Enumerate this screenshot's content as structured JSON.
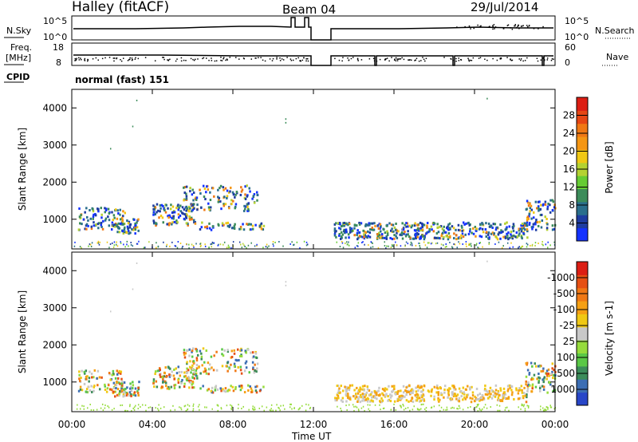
{
  "header": {
    "station": "Halley (fitACF)",
    "beam": "Beam 04",
    "date": "29/Jul/2014"
  },
  "panels": {
    "nsky": {
      "left_label": "N.Sky",
      "right_label": "N.Search",
      "left_ticks": [
        "10^5",
        "10^0"
      ],
      "right_ticks": [
        "10^5",
        "10^0"
      ]
    },
    "freq": {
      "left_label_1": "Freq.",
      "left_label_2": "[MHz]",
      "right_label": "Nave",
      "left_ticks": [
        "18",
        "8"
      ],
      "right_ticks": [
        "60",
        "0"
      ]
    },
    "cpid": {
      "label": "CPID",
      "text": "normal (fast) 151"
    }
  },
  "chart_data": [
    {
      "type": "heatmap",
      "name": "power",
      "ylabel": "Slant Range [km]",
      "ylim": [
        200,
        4500
      ],
      "yticks": [
        "1000",
        "2000",
        "3000",
        "4000"
      ],
      "colorbar_label": "Power [dB]",
      "colorbar_ticks": [
        "4",
        "8",
        "12",
        "16",
        "20",
        "24",
        "28"
      ],
      "colorbar_colors": [
        "#1432ff",
        "#1e3ca0",
        "#2a6e8c",
        "#3c8c5a",
        "#66cc33",
        "#b4d232",
        "#f0c814",
        "#f59614",
        "#f07814",
        "#e64614",
        "#dc1e14"
      ],
      "gap_utc_hours": [
        12.0,
        13.0
      ]
    },
    {
      "type": "heatmap",
      "name": "velocity",
      "ylabel": "Slant Range [km]",
      "ylim": [
        200,
        4500
      ],
      "yticks": [
        "1000",
        "2000",
        "3000",
        "4000"
      ],
      "colorbar_label": "Velocity [m s-1]",
      "colorbar_ticks": [
        "1000",
        "500",
        "100",
        "25",
        "-25",
        "-100",
        "-500",
        "-1000"
      ],
      "colorbar_colors": [
        "#2846c8",
        "#3c6eb4",
        "#3c8c5a",
        "#5ac846",
        "#96dc3c",
        "#c8c8c8",
        "#f0c814",
        "#f5a014",
        "#f07814",
        "#e65014",
        "#dc1e14"
      ],
      "gap_utc_hours": [
        12.0,
        13.0
      ]
    }
  ],
  "xaxis": {
    "ticks": [
      "00:00",
      "04:00",
      "08:00",
      "12:00",
      "16:00",
      "20:00",
      "00:00"
    ],
    "label": "Time UT"
  }
}
